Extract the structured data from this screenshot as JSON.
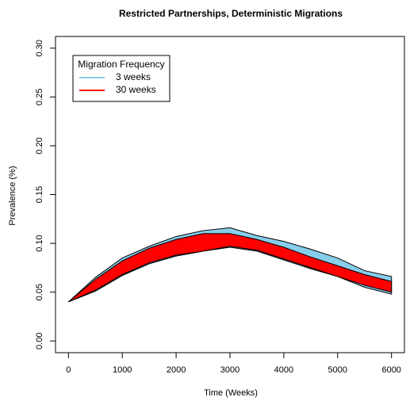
{
  "chart_data": {
    "type": "band",
    "title": "Restricted Partnerships, Deterministic Migrations",
    "x_label": "Time (Weeks)",
    "y_label": "Prevalence (%)",
    "legend_title": "Migration Frequency",
    "legend_position": "topleft",
    "x": [
      0,
      500,
      1000,
      1500,
      2000,
      2500,
      3000,
      3500,
      4000,
      4500,
      5000,
      5500,
      6000
    ],
    "series": [
      {
        "name": "3 weeks",
        "color": "#87ceeb",
        "upper": [
          0.04,
          0.065,
          0.085,
          0.097,
          0.107,
          0.113,
          0.116,
          0.108,
          0.102,
          0.094,
          0.085,
          0.072,
          0.066
        ],
        "lower": [
          0.04,
          0.051,
          0.067,
          0.079,
          0.087,
          0.092,
          0.096,
          0.092,
          0.083,
          0.074,
          0.066,
          0.055,
          0.048
        ]
      },
      {
        "name": "30 weeks",
        "color": "#ff0000",
        "upper": [
          0.04,
          0.063,
          0.082,
          0.095,
          0.104,
          0.11,
          0.11,
          0.104,
          0.096,
          0.086,
          0.077,
          0.068,
          0.061
        ],
        "lower": [
          0.04,
          0.052,
          0.068,
          0.08,
          0.088,
          0.092,
          0.097,
          0.093,
          0.084,
          0.075,
          0.066,
          0.057,
          0.05
        ]
      }
    ],
    "xlim": [
      -240,
      6240
    ],
    "ylim": [
      -0.012,
      0.312
    ],
    "xticks": [
      0,
      1000,
      2000,
      3000,
      4000,
      5000,
      6000
    ],
    "yticks": [
      {
        "value": 0,
        "label": "0.00"
      },
      {
        "value": 0.05,
        "label": "0.05"
      },
      {
        "value": 0.1,
        "label": "0.10"
      },
      {
        "value": 0.15,
        "label": "0.15"
      },
      {
        "value": 0.2,
        "label": "0.20"
      },
      {
        "value": 0.25,
        "label": "0.25"
      },
      {
        "value": 0.3,
        "label": "0.30"
      }
    ],
    "grid": false
  }
}
